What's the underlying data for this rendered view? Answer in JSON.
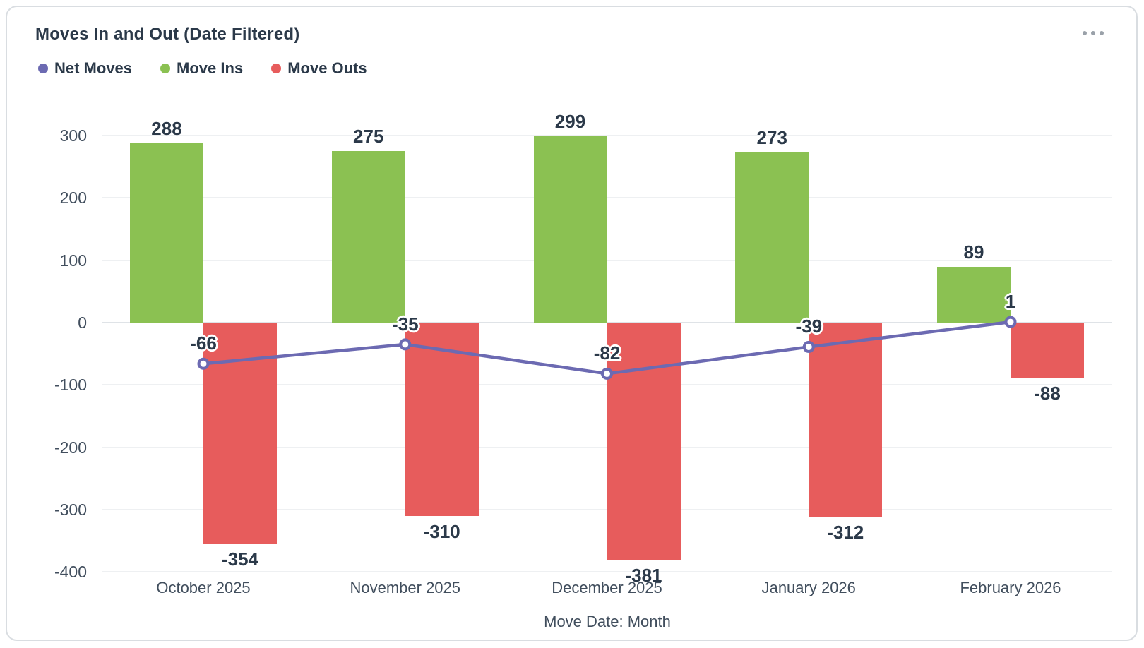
{
  "card": {
    "title": "Moves In and Out (Date Filtered)",
    "menu_icon": "ellipsis-icon"
  },
  "chart_data": {
    "type": "bar",
    "subtype": "grouped bars with overlaid line (combo chart)",
    "title": "Moves In and Out (Date Filtered)",
    "xlabel": "Move Date: Month",
    "ylabel": "",
    "categories": [
      "October 2025",
      "November 2025",
      "December 2025",
      "January 2026",
      "February 2026"
    ],
    "series": [
      {
        "name": "Net Moves",
        "type": "line",
        "color": "#6c6ab2",
        "values": [
          -66,
          -35,
          -82,
          -39,
          1
        ]
      },
      {
        "name": "Move Ins",
        "type": "bar",
        "color": "#8bc152",
        "values": [
          288,
          275,
          299,
          273,
          89
        ]
      },
      {
        "name": "Move Outs",
        "type": "bar",
        "color": "#e75c5c",
        "values": [
          -354,
          -310,
          -381,
          -312,
          -88
        ]
      }
    ],
    "y_ticks": [
      300,
      200,
      100,
      0,
      -100,
      -200,
      -300,
      -400
    ],
    "ylim": [
      -400,
      300
    ],
    "grid": true,
    "legend_position": "top-left",
    "colors": {
      "grid": "#eef0f2",
      "zero_line": "#dfe3e7",
      "label_text": "#2b3949",
      "axis_text": "#414e5d"
    }
  }
}
